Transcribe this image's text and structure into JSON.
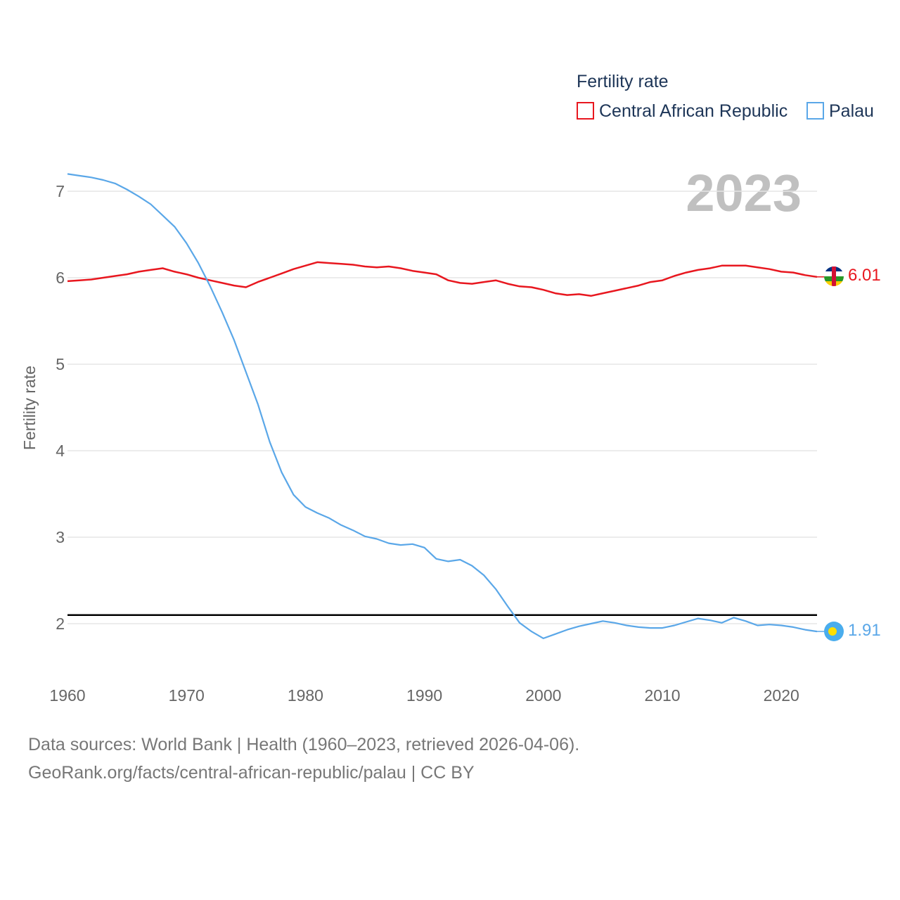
{
  "chart_data": {
    "type": "line",
    "title": "",
    "year_overlay": "2023",
    "legend": {
      "title": "Fertility rate",
      "placement": "top-right",
      "items": [
        {
          "name": "Central African Republic",
          "color": "#e8171f"
        },
        {
          "name": "Palau",
          "color": "#5aa7e8"
        }
      ]
    },
    "xlabel": "",
    "ylabel": "Fertility rate",
    "xlim": [
      1960,
      2023
    ],
    "ylim": [
      1.4,
      7.3
    ],
    "x_ticks": [
      "1960",
      "1970",
      "1980",
      "1990",
      "2000",
      "2010",
      "2020"
    ],
    "y_ticks": [
      "2",
      "3",
      "4",
      "5",
      "6",
      "7"
    ],
    "reference_line": {
      "value": 2.1,
      "color": "#000000"
    },
    "x": [
      1960,
      1961,
      1962,
      1963,
      1964,
      1965,
      1966,
      1967,
      1968,
      1969,
      1970,
      1971,
      1972,
      1973,
      1974,
      1975,
      1976,
      1977,
      1978,
      1979,
      1980,
      1981,
      1982,
      1983,
      1984,
      1985,
      1986,
      1987,
      1988,
      1989,
      1990,
      1991,
      1992,
      1993,
      1994,
      1995,
      1996,
      1997,
      1998,
      1999,
      2000,
      2001,
      2002,
      2003,
      2004,
      2005,
      2006,
      2007,
      2008,
      2009,
      2010,
      2011,
      2012,
      2013,
      2014,
      2015,
      2016,
      2017,
      2018,
      2019,
      2020,
      2021,
      2022,
      2023
    ],
    "series": [
      {
        "name": "Central African Republic",
        "color": "#e8171f",
        "end_label": "6.01",
        "flag": "central-african-republic-flag-icon",
        "values": [
          5.96,
          5.97,
          5.98,
          6.0,
          6.02,
          6.04,
          6.07,
          6.09,
          6.11,
          6.07,
          6.04,
          6.0,
          5.97,
          5.94,
          5.91,
          5.89,
          5.95,
          6.0,
          6.05,
          6.1,
          6.14,
          6.18,
          6.17,
          6.16,
          6.15,
          6.13,
          6.12,
          6.13,
          6.11,
          6.08,
          6.06,
          6.04,
          5.97,
          5.94,
          5.93,
          5.95,
          5.97,
          5.93,
          5.9,
          5.89,
          5.86,
          5.82,
          5.8,
          5.81,
          5.79,
          5.82,
          5.85,
          5.88,
          5.91,
          5.95,
          5.97,
          6.02,
          6.06,
          6.09,
          6.11,
          6.14,
          6.14,
          6.14,
          6.12,
          6.1,
          6.07,
          6.06,
          6.03,
          6.01
        ]
      },
      {
        "name": "Palau",
        "color": "#5aa7e8",
        "end_label": "1.91",
        "flag": "palau-flag-icon",
        "values": [
          7.2,
          7.18,
          7.16,
          7.13,
          7.09,
          7.02,
          6.94,
          6.85,
          6.72,
          6.59,
          6.4,
          6.17,
          5.9,
          5.6,
          5.28,
          4.91,
          4.54,
          4.1,
          3.75,
          3.49,
          3.35,
          3.28,
          3.22,
          3.14,
          3.08,
          3.01,
          2.98,
          2.93,
          2.91,
          2.92,
          2.88,
          2.75,
          2.72,
          2.74,
          2.67,
          2.56,
          2.4,
          2.2,
          2.01,
          1.91,
          1.83,
          1.88,
          1.93,
          1.97,
          2.0,
          2.03,
          2.01,
          1.98,
          1.96,
          1.95,
          1.95,
          1.98,
          2.02,
          2.06,
          2.04,
          2.01,
          2.07,
          2.03,
          1.98,
          1.99,
          1.98,
          1.96,
          1.93,
          1.91
        ]
      }
    ]
  },
  "footer": {
    "line1": "Data sources: World Bank | Health (1960–2023, retrieved 2026-04-06).",
    "line2": "GeoRank.org/facts/central-african-republic/palau | CC BY"
  }
}
